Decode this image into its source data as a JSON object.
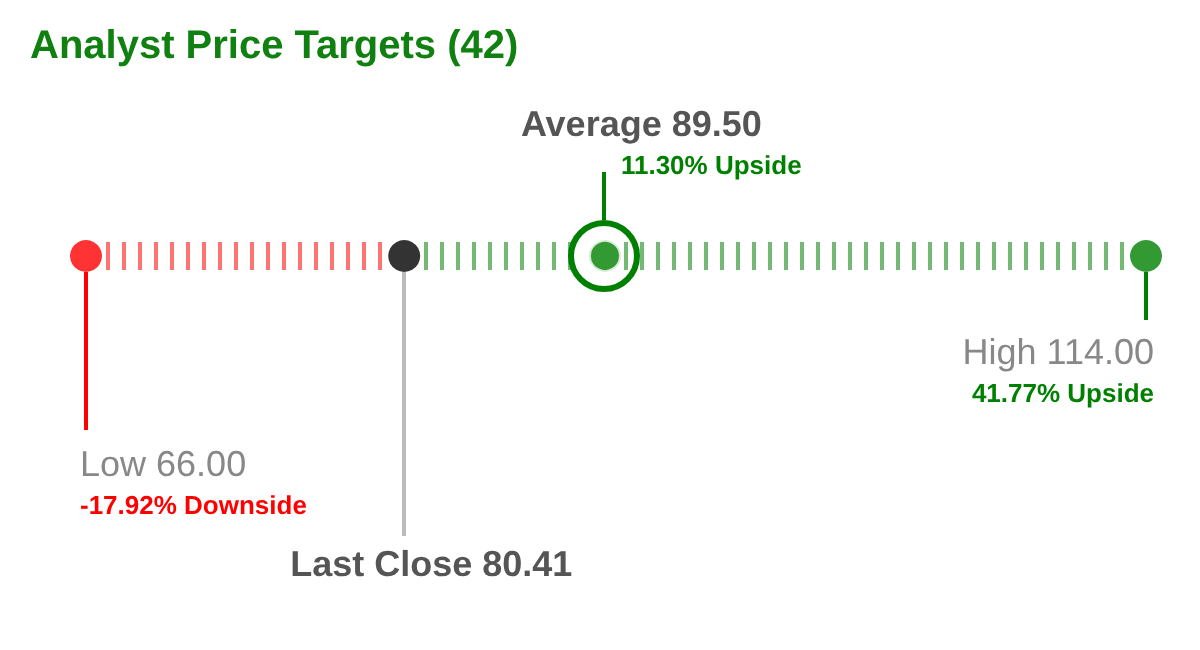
{
  "chart_data": {
    "type": "other",
    "title": "Analyst Price Targets (42)",
    "categories": [
      "Low",
      "Last Close",
      "Average",
      "High"
    ],
    "values": [
      66.0,
      80.41,
      89.5,
      114.0
    ],
    "value_labels": [
      "66.00",
      "80.41",
      "89.50",
      "114.00"
    ],
    "colors": [
      "#ff0000",
      "#000000",
      "#008000",
      "#008000"
    ],
    "annotations": [
      {
        "text": "-17.92% Downside",
        "x": "Low"
      },
      {
        "text": "11.30% Upside",
        "x": "Average"
      },
      {
        "text": "41.77% Upside",
        "x": "High"
      }
    ]
  }
}
